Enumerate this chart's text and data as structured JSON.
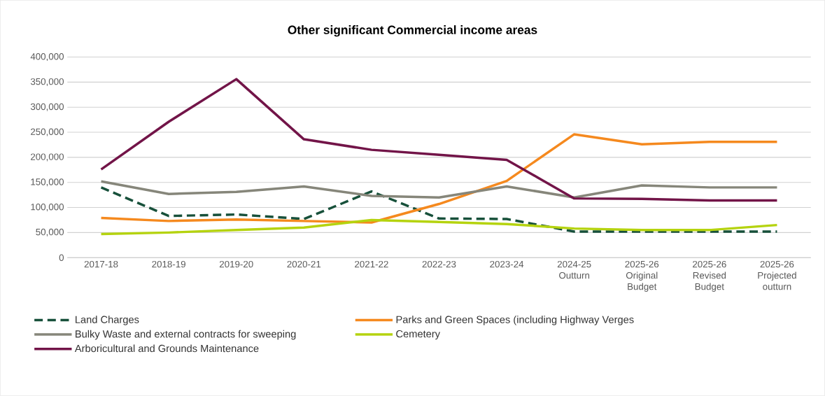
{
  "chart_data": {
    "type": "line",
    "title": "Other significant Commercial income areas",
    "categories": [
      "2017-18",
      "2018-19",
      "2019-20",
      "2020-21",
      "2021-22",
      "2022-23",
      "2023-24",
      "2024-25 Outturn",
      "2025-26 Original Budget",
      "2025-26 Revised Budget",
      "2025-26 Projected outturn"
    ],
    "series": [
      {
        "name": "Land Charges",
        "color": "#17503a",
        "line_style": "dashed",
        "values": [
          140000,
          83000,
          86000,
          77000,
          132000,
          78000,
          77000,
          52000,
          52000,
          52000,
          52000
        ]
      },
      {
        "name": "Parks and Green Spaces (including Highway Verges",
        "color": "#f5891e",
        "values": [
          79000,
          73000,
          76000,
          73000,
          70000,
          107000,
          153000,
          246000,
          226000,
          231000,
          231000
        ]
      },
      {
        "name": "Bulky Waste and external contracts for sweeping",
        "color": "#86867a",
        "values": [
          152000,
          127000,
          131000,
          142000,
          123000,
          120000,
          142000,
          120000,
          144000,
          140000,
          140000
        ]
      },
      {
        "name": "Cemetery",
        "color": "#b5d30f",
        "values": [
          47000,
          50000,
          55000,
          60000,
          75000,
          71000,
          67000,
          58000,
          55000,
          55000,
          65000
        ]
      },
      {
        "name": "Arboricultural and Grounds Maintenance",
        "color": "#721448",
        "values": [
          176000,
          271000,
          356000,
          236000,
          215000,
          205000,
          195000,
          118000,
          117000,
          114000,
          114000
        ]
      }
    ],
    "ylim": [
      0,
      400000
    ],
    "yticks": [
      {
        "value": 0,
        "label": "0"
      },
      {
        "value": 50000,
        "label": "50,000"
      },
      {
        "value": 100000,
        "label": "100,000"
      },
      {
        "value": 150000,
        "label": "150,000"
      },
      {
        "value": 200000,
        "label": "200,000"
      },
      {
        "value": 250000,
        "label": "250,000"
      },
      {
        "value": 300000,
        "label": "300,000"
      },
      {
        "value": 350000,
        "label": "350,000"
      },
      {
        "value": 400000,
        "label": "400,000"
      }
    ],
    "grid": "y",
    "legend": "bottom"
  }
}
